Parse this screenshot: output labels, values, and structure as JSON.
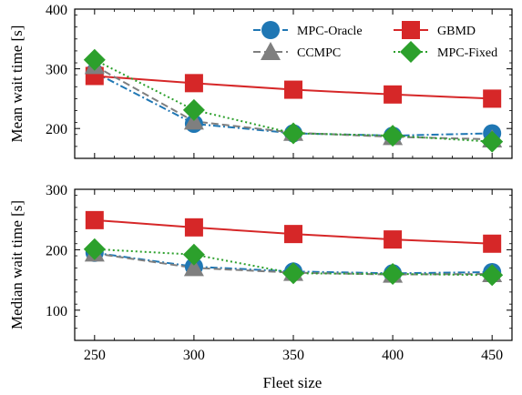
{
  "chart_data": [
    {
      "type": "line",
      "title": "",
      "xlabel": "",
      "ylabel": "Mean wait time [s]",
      "x": [
        250,
        300,
        350,
        400,
        450
      ],
      "xticks": [
        250,
        300,
        350,
        400,
        450
      ],
      "xlim": [
        240,
        460
      ],
      "ylim": [
        150,
        400
      ],
      "yticks": [
        200,
        300,
        400
      ],
      "grid": false,
      "legend_position": "top-right",
      "series": [
        {
          "name": "MPC-Oracle",
          "values": [
            294,
            208,
            192,
            188,
            192
          ],
          "color": "#1f77b4",
          "marker": "circle",
          "linestyle": "dashdot"
        },
        {
          "name": "GBMD",
          "values": [
            288,
            276,
            265,
            257,
            250
          ],
          "color": "#d62728",
          "marker": "square",
          "linestyle": "solid"
        },
        {
          "name": "CCMPC",
          "values": [
            305,
            212,
            193,
            186,
            182
          ],
          "color": "#7f7f7f",
          "marker": "triangle",
          "linestyle": "dashed"
        },
        {
          "name": "MPC-Fixed",
          "values": [
            315,
            231,
            192,
            188,
            178
          ],
          "color": "#2ca02c",
          "marker": "diamond",
          "linestyle": "dotted"
        }
      ]
    },
    {
      "type": "line",
      "title": "",
      "xlabel": "Fleet size",
      "ylabel": "Median wait time [s]",
      "x": [
        250,
        300,
        350,
        400,
        450
      ],
      "xticks": [
        250,
        300,
        350,
        400,
        450
      ],
      "xlim": [
        240,
        460
      ],
      "ylim": [
        50,
        300
      ],
      "yticks": [
        100,
        200,
        300
      ],
      "grid": false,
      "series": [
        {
          "name": "MPC-Oracle",
          "values": [
            195,
            172,
            164,
            161,
            163
          ],
          "color": "#1f77b4",
          "marker": "circle",
          "linestyle": "dashdot"
        },
        {
          "name": "GBMD",
          "values": [
            249,
            237,
            226,
            217,
            210
          ],
          "color": "#d62728",
          "marker": "square",
          "linestyle": "solid"
        },
        {
          "name": "CCMPC",
          "values": [
            194,
            170,
            162,
            159,
            160
          ],
          "color": "#7f7f7f",
          "marker": "triangle",
          "linestyle": "dashed"
        },
        {
          "name": "MPC-Fixed",
          "values": [
            201,
            192,
            161,
            160,
            158
          ],
          "color": "#2ca02c",
          "marker": "diamond",
          "linestyle": "dotted"
        }
      ]
    }
  ]
}
